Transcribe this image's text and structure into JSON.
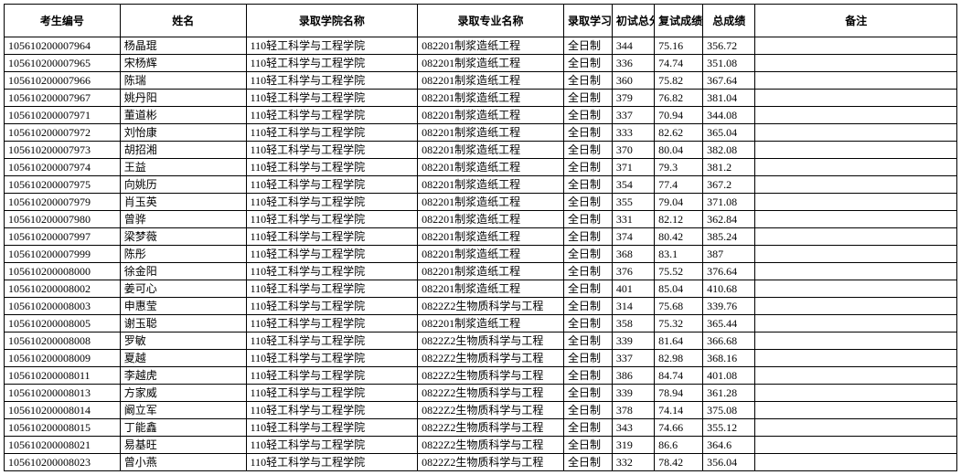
{
  "headers": {
    "id": "考生编号",
    "name": "姓名",
    "college": "录取学院名称",
    "major": "录取专业名称",
    "mode": "录取学习方式",
    "score1": "初试总分",
    "score2": "复试成绩",
    "total": "总成绩",
    "remark": "备注"
  },
  "colors": {
    "border": "#000000",
    "background": "#ffffff",
    "text": "#000000",
    "watermark_blue": "#5b9bd5",
    "watermark_red": "#c00000"
  },
  "rows": [
    {
      "id": "105610200007964",
      "name": "杨晶琨",
      "college": "110轻工科学与工程学院",
      "major": "082201制浆造纸工程",
      "mode": "全日制",
      "score1": "344",
      "score2": "75.16",
      "total": "356.72",
      "remark": ""
    },
    {
      "id": "105610200007965",
      "name": "宋杨辉",
      "college": "110轻工科学与工程学院",
      "major": "082201制浆造纸工程",
      "mode": "全日制",
      "score1": "336",
      "score2": "74.74",
      "total": "351.08",
      "remark": ""
    },
    {
      "id": "105610200007966",
      "name": "陈瑞",
      "college": "110轻工科学与工程学院",
      "major": "082201制浆造纸工程",
      "mode": "全日制",
      "score1": "360",
      "score2": "75.82",
      "total": "367.64",
      "remark": ""
    },
    {
      "id": "105610200007967",
      "name": "姚丹阳",
      "college": "110轻工科学与工程学院",
      "major": "082201制浆造纸工程",
      "mode": "全日制",
      "score1": "379",
      "score2": "76.82",
      "total": "381.04",
      "remark": ""
    },
    {
      "id": "105610200007971",
      "name": "董道彬",
      "college": "110轻工科学与工程学院",
      "major": "082201制浆造纸工程",
      "mode": "全日制",
      "score1": "337",
      "score2": "70.94",
      "total": "344.08",
      "remark": ""
    },
    {
      "id": "105610200007972",
      "name": "刘怡康",
      "college": "110轻工科学与工程学院",
      "major": "082201制浆造纸工程",
      "mode": "全日制",
      "score1": "333",
      "score2": "82.62",
      "total": "365.04",
      "remark": ""
    },
    {
      "id": "105610200007973",
      "name": "胡招湘",
      "college": "110轻工科学与工程学院",
      "major": "082201制浆造纸工程",
      "mode": "全日制",
      "score1": "370",
      "score2": "80.04",
      "total": "382.08",
      "remark": ""
    },
    {
      "id": "105610200007974",
      "name": "王益",
      "college": "110轻工科学与工程学院",
      "major": "082201制浆造纸工程",
      "mode": "全日制",
      "score1": "371",
      "score2": "79.3",
      "total": "381.2",
      "remark": ""
    },
    {
      "id": "105610200007975",
      "name": "向姚历",
      "college": "110轻工科学与工程学院",
      "major": "082201制浆造纸工程",
      "mode": "全日制",
      "score1": "354",
      "score2": "77.4",
      "total": "367.2",
      "remark": ""
    },
    {
      "id": "105610200007979",
      "name": "肖玉英",
      "college": "110轻工科学与工程学院",
      "major": "082201制浆造纸工程",
      "mode": "全日制",
      "score1": "355",
      "score2": "79.04",
      "total": "371.08",
      "remark": ""
    },
    {
      "id": "105610200007980",
      "name": "曾骅",
      "college": "110轻工科学与工程学院",
      "major": "082201制浆造纸工程",
      "mode": "全日制",
      "score1": "331",
      "score2": "82.12",
      "total": "362.84",
      "remark": ""
    },
    {
      "id": "105610200007997",
      "name": "梁梦薇",
      "college": "110轻工科学与工程学院",
      "major": "082201制浆造纸工程",
      "mode": "全日制",
      "score1": "374",
      "score2": "80.42",
      "total": "385.24",
      "remark": ""
    },
    {
      "id": "105610200007999",
      "name": "陈彤",
      "college": "110轻工科学与工程学院",
      "major": "082201制浆造纸工程",
      "mode": "全日制",
      "score1": "368",
      "score2": "83.1",
      "total": "387",
      "remark": ""
    },
    {
      "id": "105610200008000",
      "name": "徐金阳",
      "college": "110轻工科学与工程学院",
      "major": "082201制浆造纸工程",
      "mode": "全日制",
      "score1": "376",
      "score2": "75.52",
      "total": "376.64",
      "remark": ""
    },
    {
      "id": "105610200008002",
      "name": "姜可心",
      "college": "110轻工科学与工程学院",
      "major": "082201制浆造纸工程",
      "mode": "全日制",
      "score1": "401",
      "score2": "85.04",
      "total": "410.68",
      "remark": ""
    },
    {
      "id": "105610200008003",
      "name": "申惠莹",
      "college": "110轻工科学与工程学院",
      "major": "0822Z2生物质科学与工程",
      "mode": "全日制",
      "score1": "314",
      "score2": "75.68",
      "total": "339.76",
      "remark": ""
    },
    {
      "id": "105610200008005",
      "name": "谢玉聪",
      "college": "110轻工科学与工程学院",
      "major": "082201制浆造纸工程",
      "mode": "全日制",
      "score1": "358",
      "score2": "75.32",
      "total": "365.44",
      "remark": ""
    },
    {
      "id": "105610200008008",
      "name": "罗敏",
      "college": "110轻工科学与工程学院",
      "major": "0822Z2生物质科学与工程",
      "mode": "全日制",
      "score1": "339",
      "score2": "81.64",
      "total": "366.68",
      "remark": ""
    },
    {
      "id": "105610200008009",
      "name": "夏越",
      "college": "110轻工科学与工程学院",
      "major": "0822Z2生物质科学与工程",
      "mode": "全日制",
      "score1": "337",
      "score2": "82.98",
      "total": "368.16",
      "remark": ""
    },
    {
      "id": "105610200008011",
      "name": "李越虎",
      "college": "110轻工科学与工程学院",
      "major": "0822Z2生物质科学与工程",
      "mode": "全日制",
      "score1": "386",
      "score2": "84.74",
      "total": "401.08",
      "remark": ""
    },
    {
      "id": "105610200008013",
      "name": "方家威",
      "college": "110轻工科学与工程学院",
      "major": "0822Z2生物质科学与工程",
      "mode": "全日制",
      "score1": "339",
      "score2": "78.94",
      "total": "361.28",
      "remark": ""
    },
    {
      "id": "105610200008014",
      "name": "阚立军",
      "college": "110轻工科学与工程学院",
      "major": "0822Z2生物质科学与工程",
      "mode": "全日制",
      "score1": "378",
      "score2": "74.14",
      "total": "375.08",
      "remark": ""
    },
    {
      "id": "105610200008015",
      "name": "丁能鑫",
      "college": "110轻工科学与工程学院",
      "major": "0822Z2生物质科学与工程",
      "mode": "全日制",
      "score1": "343",
      "score2": "74.66",
      "total": "355.12",
      "remark": ""
    },
    {
      "id": "105610200008021",
      "name": "易基旺",
      "college": "110轻工科学与工程学院",
      "major": "0822Z2生物质科学与工程",
      "mode": "全日制",
      "score1": "319",
      "score2": "86.6",
      "total": "364.6",
      "remark": ""
    },
    {
      "id": "105610200008023",
      "name": "曾小燕",
      "college": "110轻工科学与工程学院",
      "major": "0822Z2生物质科学与工程",
      "mode": "全日制",
      "score1": "332",
      "score2": "78.42",
      "total": "356.04",
      "remark": ""
    }
  ]
}
